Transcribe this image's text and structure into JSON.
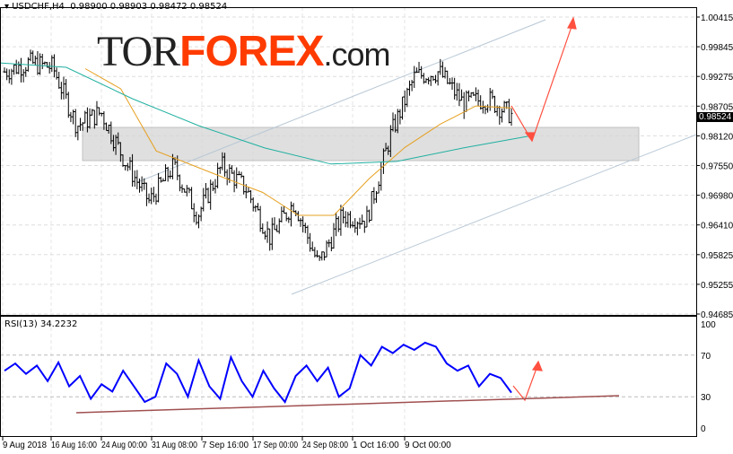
{
  "header": {
    "symbol": "USDCHF,H4",
    "ohlc": "0.98900 0.98903 0.98472 0.98524",
    "rsi_title": "RSI(13) 34.2232",
    "last_price": "0.98524"
  },
  "logo": {
    "part1": "TOR",
    "part2": "FOREX",
    ".com": ".com"
  },
  "colors": {
    "bars": "#000000",
    "ma_fast": "#e6a020",
    "ma_slow": "#20b0a0",
    "rsi": "#0000ff",
    "channel": "#b0c4d4",
    "arrows": "#ff5040",
    "support": "#a05050"
  },
  "chart_data": [
    {
      "type": "line",
      "name": "",
      "title": "USDCHF,H4",
      "y_ticks": [
        "1.00415",
        "0.99845",
        "0.99275",
        "0.98705",
        "0.98120",
        "0.97550",
        "0.96980",
        "0.96410",
        "0.95825",
        "0.95255",
        "0.94685"
      ],
      "ylim": [
        0.94685,
        1.00415
      ],
      "x_ticks": [
        "9 Aug 2018",
        "16 Aug 16:00",
        "24 Aug 00:00",
        "31 Aug 08:00",
        "7 Sep 16:00",
        "17 Sep 00:00",
        "24 Sep 08:00",
        "1 Oct 16:00",
        "9 Oct 00:00"
      ],
      "grid": true,
      "close": [
        0.99359,
        0.99532,
        0.99446,
        0.9832,
        0.9858,
        0.97628,
        0.96849,
        0.97541,
        0.96589,
        0.97541,
        0.97109,
        0.96157,
        0.96849,
        0.95637,
        0.96589,
        0.96503,
        0.98147,
        0.99272,
        0.99359,
        0.98753,
        0.9884,
        0.98524
      ],
      "ma_fast": [
        0.9942,
        0.9903,
        0.9783,
        0.9756,
        0.9729,
        0.9703,
        0.9659,
        0.9659,
        0.973,
        0.979,
        0.9835,
        0.987,
        0.9866
      ],
      "ma_slow": [
        0.9953,
        0.99446,
        0.9884,
        0.9832,
        0.9789,
        0.9758,
        0.9763,
        0.9789,
        0.9812
      ]
    },
    {
      "type": "line",
      "name": "",
      "title": "RSI(13) 34.2232",
      "y_ticks": [
        "100",
        "70",
        "30",
        "0"
      ],
      "ylim": [
        0,
        100
      ],
      "values": [
        55,
        62,
        52,
        60,
        45,
        63,
        40,
        50,
        28,
        42,
        35,
        55,
        40,
        25,
        30,
        62,
        52,
        30,
        65,
        40,
        28,
        68,
        45,
        30,
        55,
        38,
        25,
        50,
        60,
        45,
        58,
        30,
        38,
        70,
        60,
        78,
        72,
        80,
        75,
        82,
        78,
        62,
        55,
        60,
        40,
        52,
        48,
        34
      ]
    }
  ]
}
